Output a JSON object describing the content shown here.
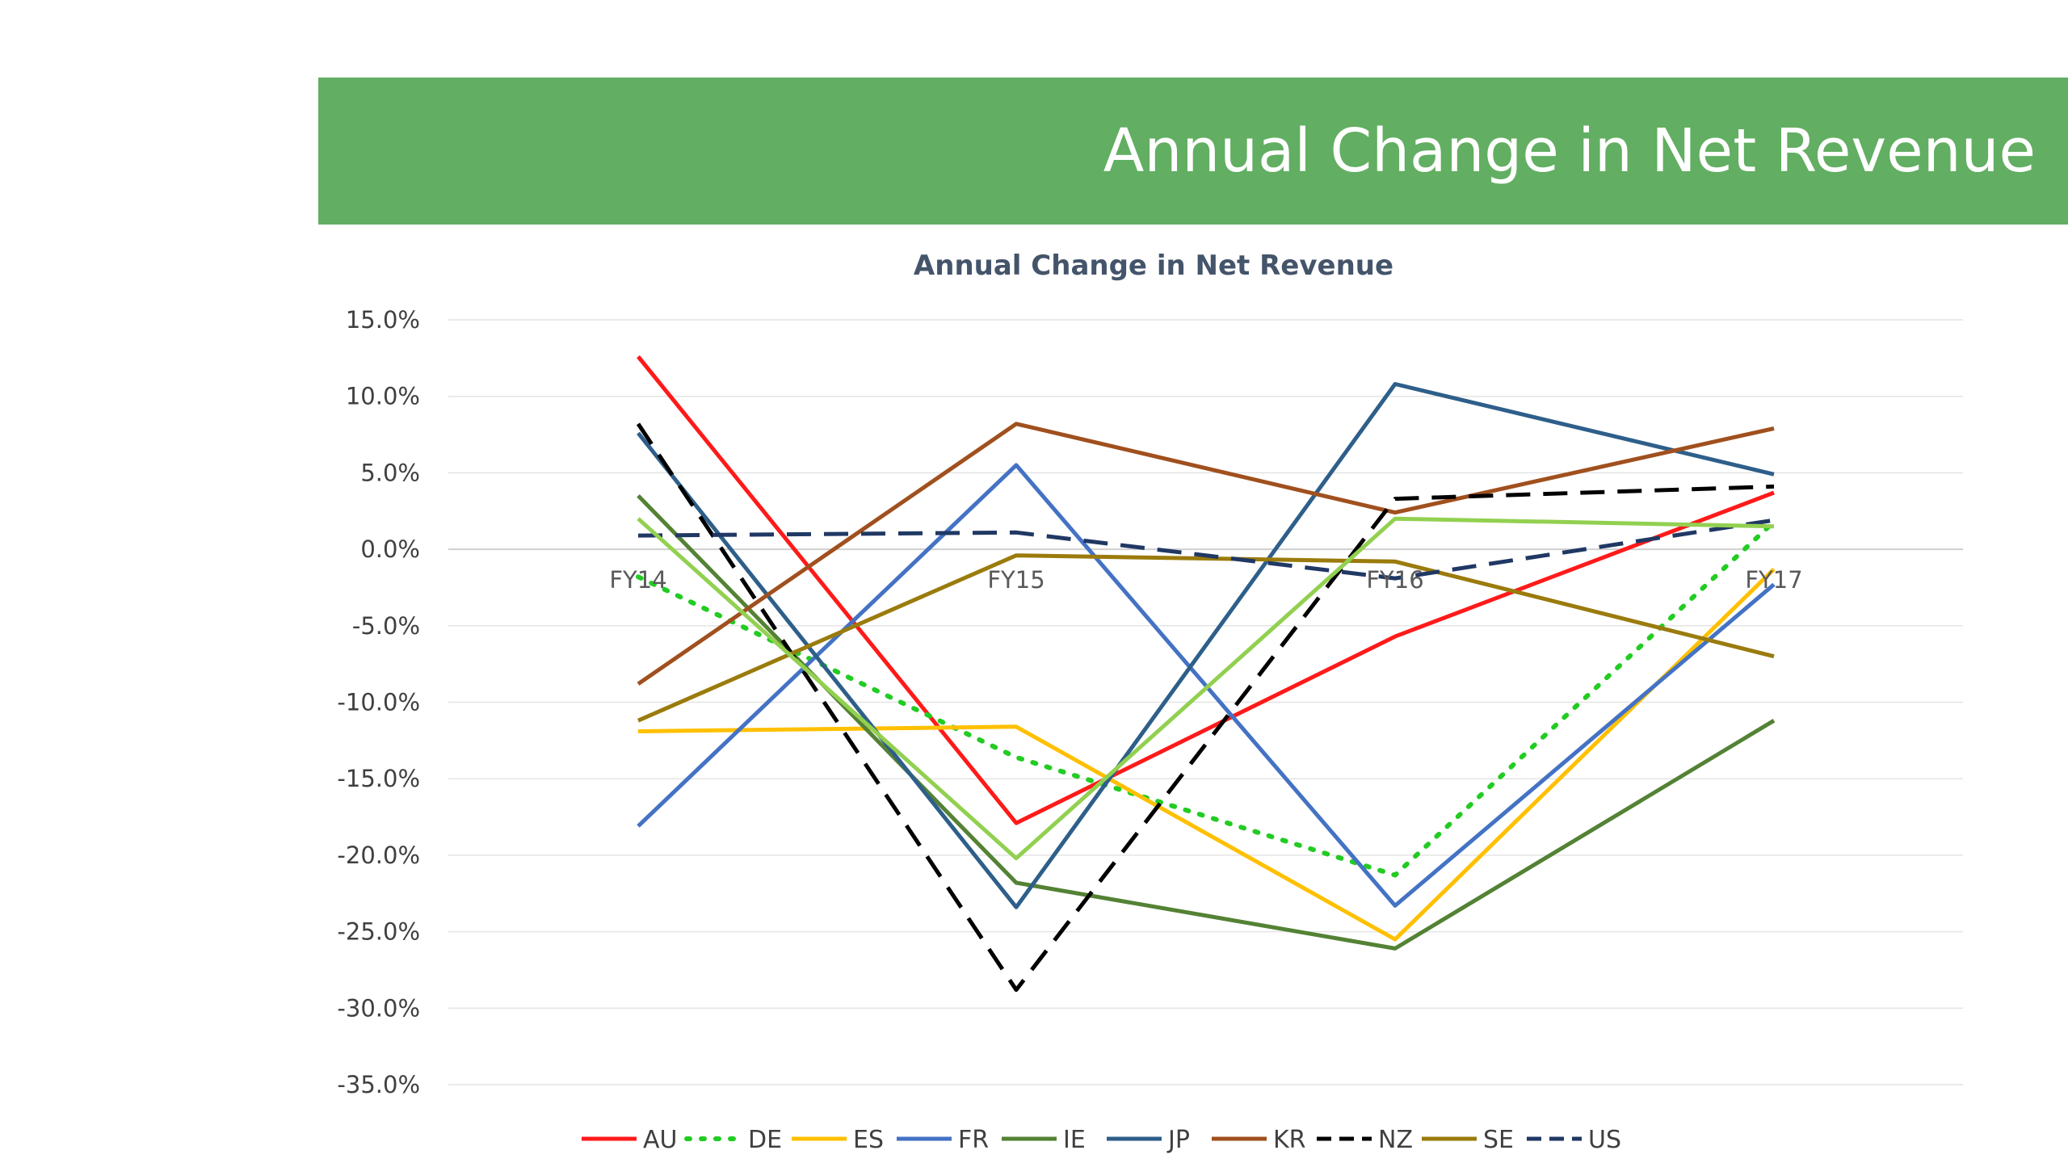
{
  "banner": {
    "title": "Annual Change in Net Revenue",
    "background": "#62ae62"
  },
  "chart_data": {
    "type": "line",
    "title": "Annual Change in Net Revenue",
    "xlabel": "",
    "ylabel": "",
    "categories": [
      "FY14",
      "FY15",
      "FY16",
      "FY17"
    ],
    "ylim": [
      -35,
      15
    ],
    "yticks": [
      15,
      10,
      5,
      0,
      -5,
      -10,
      -15,
      -20,
      -25,
      -30,
      -35
    ],
    "ytick_labels": [
      "15.0%",
      "10.0%",
      "5.0%",
      "0.0%",
      "-5.0%",
      "-10.0%",
      "-15.0%",
      "-20.0%",
      "-25.0%",
      "-30.0%",
      "-35.0%"
    ],
    "grid": true,
    "legend_position": "bottom",
    "series": [
      {
        "name": "AU",
        "color": "#ff1a1a",
        "dash": "solid",
        "values": [
          12.6,
          -17.9,
          -5.7,
          3.7
        ]
      },
      {
        "name": "DE",
        "color": "#22cc22",
        "dash": "dotted",
        "values": [
          -1.8,
          -13.6,
          -21.3,
          1.8
        ]
      },
      {
        "name": "ES",
        "color": "#ffc000",
        "dash": "solid",
        "values": [
          -11.9,
          -11.6,
          -25.5,
          -1.3
        ]
      },
      {
        "name": "FR",
        "color": "#4472c4",
        "dash": "solid",
        "values": [
          -18.1,
          5.5,
          -23.3,
          -2.3
        ]
      },
      {
        "name": "IE",
        "color": "#548235",
        "dash": "solid",
        "values": [
          3.5,
          -21.8,
          -26.1,
          -11.2
        ]
      },
      {
        "name": "JP",
        "color": "#2e5f8a",
        "dash": "solid",
        "values": [
          7.6,
          -23.4,
          10.8,
          4.9
        ]
      },
      {
        "name": "KR",
        "color": "#a0501e",
        "dash": "solid",
        "values": [
          -8.8,
          8.2,
          2.4,
          7.9
        ]
      },
      {
        "name": "NZ",
        "color": "#000000",
        "dash": "dashed",
        "values": [
          8.2,
          -28.8,
          3.3,
          4.1
        ]
      },
      {
        "name": "SE",
        "color": "#9a7b0c",
        "dash": "solid",
        "values": [
          -11.2,
          -0.4,
          -0.8,
          -7.0
        ]
      },
      {
        "name": "US",
        "color": "#203864",
        "dash": "dashed",
        "values": [
          0.9,
          1.1,
          -1.9,
          1.9
        ]
      },
      {
        "name": "",
        "color": "#92d050",
        "dash": "solid",
        "values": [
          2.0,
          -20.2,
          2.0,
          1.5
        ]
      }
    ]
  }
}
